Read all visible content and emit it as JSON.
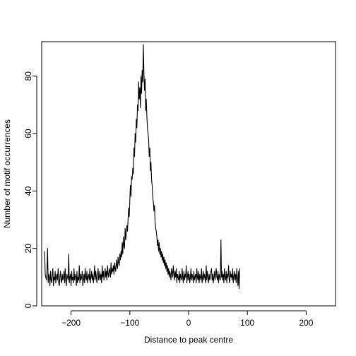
{
  "chart_data": {
    "type": "line",
    "title": "",
    "xlabel": "Distance to peak centre",
    "ylabel": "Number of motif occurrences",
    "xlim": [
      -250,
      250
    ],
    "ylim": [
      0,
      92
    ],
    "xticks": [
      -200,
      -100,
      0,
      100,
      200
    ],
    "xtick_labels": [
      "−200",
      "−100",
      "0",
      "100",
      "200"
    ],
    "yticks": [
      0,
      20,
      40,
      60,
      80
    ],
    "ytick_labels": [
      "0",
      "20",
      "40",
      "60",
      "80"
    ],
    "grid": false,
    "legend": "none",
    "line_color": "#000000",
    "series": [
      {
        "x_start": -245,
        "x_step": 1,
        "values": [
          19,
          11,
          10,
          9,
          12,
          20,
          8,
          11,
          10,
          7,
          12,
          9,
          8,
          11,
          13,
          7,
          10,
          9,
          12,
          8,
          10,
          11,
          9,
          13,
          8,
          7,
          10,
          12,
          9,
          8,
          11,
          9,
          10,
          12,
          8,
          13,
          9,
          7,
          11,
          10,
          9,
          18,
          8,
          10,
          11,
          7,
          12,
          9,
          10,
          8,
          13,
          9,
          11,
          10,
          7,
          12,
          8,
          10,
          9,
          14,
          8,
          11,
          9,
          10,
          12,
          7,
          9,
          11,
          8,
          13,
          10,
          9,
          12,
          8,
          10,
          11,
          9,
          13,
          8,
          10,
          12,
          9,
          11,
          8,
          10,
          14,
          9,
          12,
          10,
          8,
          11,
          13,
          9,
          10,
          12,
          9,
          11,
          8,
          14,
          10,
          12,
          9,
          11,
          13,
          10,
          12,
          9,
          14,
          11,
          10,
          13,
          12,
          10,
          15,
          11,
          13,
          12,
          14,
          11,
          15,
          13,
          12,
          16,
          14,
          13,
          17,
          15,
          14,
          18,
          16,
          19,
          17,
          22,
          18,
          24,
          21,
          20,
          27,
          23,
          25,
          28,
          26,
          30,
          34,
          31,
          37,
          42,
          38,
          45,
          44,
          48,
          46,
          55,
          52,
          60,
          57,
          65,
          62,
          70,
          68,
          78,
          72,
          76,
          69,
          80,
          74,
          82,
          78,
          91,
          81,
          75,
          79,
          68,
          72,
          66,
          62,
          60,
          58,
          52,
          55,
          47,
          50,
          44,
          42,
          38,
          36,
          33,
          35,
          29,
          27,
          26,
          24,
          21,
          23,
          19,
          22,
          18,
          20,
          17,
          19,
          16,
          18,
          15,
          17,
          14,
          16,
          13,
          15,
          12,
          14,
          11,
          13,
          10,
          12,
          11,
          9,
          13,
          12,
          10,
          14,
          11,
          9,
          12,
          10,
          13,
          8,
          11,
          10,
          9,
          12,
          8,
          11,
          10,
          9,
          13,
          10,
          8,
          12,
          9,
          11,
          10,
          14,
          8,
          10,
          12,
          9,
          11,
          8,
          10,
          13,
          9,
          11,
          10,
          8,
          12,
          9,
          10,
          11,
          8,
          13,
          10,
          9,
          12,
          8,
          11,
          10,
          9,
          13,
          8,
          10,
          12,
          9,
          11,
          10,
          8,
          14,
          9,
          12,
          10,
          8,
          11,
          9,
          10,
          12,
          13,
          9,
          11,
          8,
          10,
          12,
          9,
          11,
          13,
          10,
          9,
          12,
          8,
          11,
          10,
          9,
          23,
          10,
          12,
          9,
          11,
          8,
          13,
          10,
          9,
          12,
          8,
          11,
          10,
          14,
          9,
          8,
          12,
          10,
          11,
          9,
          13,
          8,
          10,
          12,
          9,
          11,
          8,
          13,
          10,
          7,
          12,
          6,
          13
        ]
      }
    ]
  }
}
